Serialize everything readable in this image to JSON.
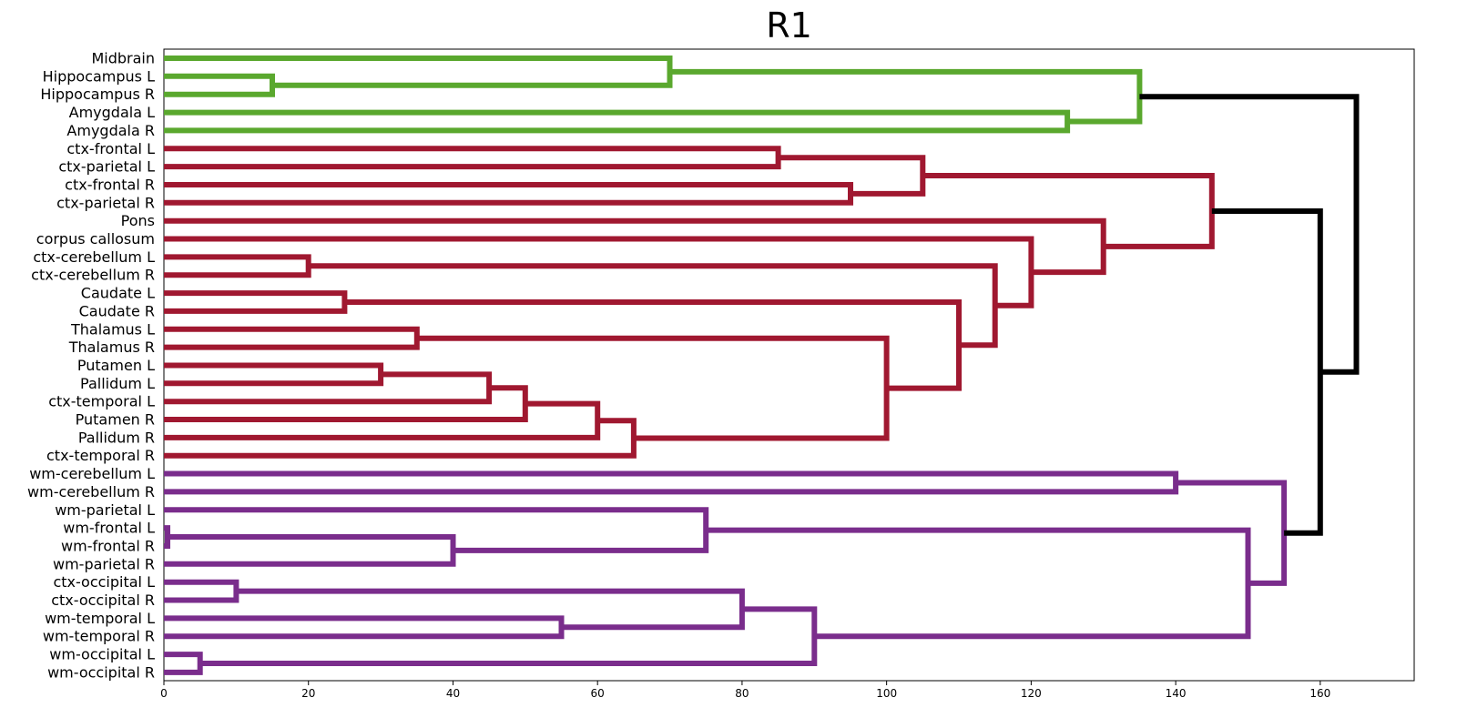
{
  "chart_data": {
    "type": "dendrogram",
    "title": "R1",
    "orientation": "left-to-right",
    "xlim": [
      0,
      173
    ],
    "xticks": [
      0,
      20,
      40,
      60,
      80,
      100,
      120,
      140,
      160
    ],
    "colors": {
      "green": "#5aa82e",
      "red": "#a01830",
      "purple": "#7a2d8c",
      "black": "#000000"
    },
    "leaves": [
      "Midbrain",
      "Hippocampus L",
      "Hippocampus R",
      "Amygdala L",
      "Amygdala R",
      "ctx-frontal L",
      "ctx-parietal L",
      "ctx-frontal R",
      "ctx-parietal R",
      "Pons",
      "corpus callosum",
      "ctx-cerebellum L",
      "ctx-cerebellum R",
      "Caudate L",
      "Caudate R",
      "Thalamus L",
      "Thalamus R",
      "Putamen L",
      "Pallidum L",
      "ctx-temporal L",
      "Putamen R",
      "Pallidum R",
      "ctx-temporal R",
      "wm-cerebellum L",
      "wm-cerebellum R",
      "wm-parietal L",
      "wm-frontal L",
      "wm-frontal R",
      "wm-parietal R",
      "ctx-occipital L",
      "ctx-occipital R",
      "wm-temporal L",
      "wm-temporal R",
      "wm-occipital L",
      "wm-occipital R"
    ],
    "merges": [
      {
        "id": "H",
        "a": "L1",
        "b": "L2",
        "height": 15,
        "color": "green"
      },
      {
        "id": "MH",
        "a": "L0",
        "b": "H",
        "height": 70,
        "color": "green"
      },
      {
        "id": "AM",
        "a": "L3",
        "b": "L4",
        "height": 125,
        "color": "green"
      },
      {
        "id": "G",
        "a": "MH",
        "b": "AM",
        "height": 135,
        "color": "green"
      },
      {
        "id": "FP1",
        "a": "L5",
        "b": "L6",
        "height": 85,
        "color": "red"
      },
      {
        "id": "FP2",
        "a": "L7",
        "b": "L8",
        "height": 95,
        "color": "red"
      },
      {
        "id": "CTX",
        "a": "FP1",
        "b": "FP2",
        "height": 105,
        "color": "red"
      },
      {
        "id": "CB",
        "a": "L11",
        "b": "L12",
        "height": 20,
        "color": "red"
      },
      {
        "id": "CA",
        "a": "L13",
        "b": "L14",
        "height": 25,
        "color": "red"
      },
      {
        "id": "TH",
        "a": "L15",
        "b": "L16",
        "height": 35,
        "color": "red"
      },
      {
        "id": "PP",
        "a": "L17",
        "b": "L18",
        "height": 30,
        "color": "red"
      },
      {
        "id": "PPT",
        "a": "PP",
        "b": "L19",
        "height": 45,
        "color": "red"
      },
      {
        "id": "PPTP",
        "a": "PPT",
        "b": "L20",
        "height": 50,
        "color": "red"
      },
      {
        "id": "PR",
        "a": "PPTP",
        "b": "L21",
        "height": 60,
        "color": "red"
      },
      {
        "id": "PRT",
        "a": "PR",
        "b": "L22",
        "height": 65,
        "color": "red"
      },
      {
        "id": "BG",
        "a": "TH",
        "b": "PRT",
        "height": 100,
        "color": "red"
      },
      {
        "id": "CBG",
        "a": "CA",
        "b": "BG",
        "height": 110,
        "color": "red"
      },
      {
        "id": "CBB",
        "a": "CB",
        "b": "CBG",
        "height": 115,
        "color": "red"
      },
      {
        "id": "CC",
        "a": "L10",
        "b": "CBB",
        "height": 120,
        "color": "red"
      },
      {
        "id": "PO",
        "a": "L9",
        "b": "CC",
        "height": 130,
        "color": "red"
      },
      {
        "id": "R",
        "a": "CTX",
        "b": "PO",
        "height": 145,
        "color": "red"
      },
      {
        "id": "WC",
        "a": "L23",
        "b": "L24",
        "height": 140,
        "color": "purple"
      },
      {
        "id": "WF",
        "a": "L26",
        "b": "L27",
        "height": 0.5,
        "color": "purple"
      },
      {
        "id": "WFP",
        "a": "WF",
        "b": "L28",
        "height": 40,
        "color": "purple"
      },
      {
        "id": "WPF",
        "a": "L25",
        "b": "WFP",
        "height": 75,
        "color": "purple"
      },
      {
        "id": "CO",
        "a": "L29",
        "b": "L30",
        "height": 10,
        "color": "purple"
      },
      {
        "id": "WT",
        "a": "L31",
        "b": "L32",
        "height": 55,
        "color": "purple"
      },
      {
        "id": "COT",
        "a": "CO",
        "b": "WT",
        "height": 80,
        "color": "purple"
      },
      {
        "id": "WO",
        "a": "L33",
        "b": "L34",
        "height": 5,
        "color": "purple"
      },
      {
        "id": "OCC",
        "a": "COT",
        "b": "WO",
        "height": 90,
        "color": "purple"
      },
      {
        "id": "WM",
        "a": "WPF",
        "b": "OCC",
        "height": 150,
        "color": "purple"
      },
      {
        "id": "P",
        "a": "WC",
        "b": "WM",
        "height": 155,
        "color": "purple"
      },
      {
        "id": "RP",
        "a": "R",
        "b": "P",
        "height": 160,
        "color": "black"
      },
      {
        "id": "ROOT",
        "a": "G",
        "b": "RP",
        "height": 165,
        "color": "black"
      }
    ]
  }
}
